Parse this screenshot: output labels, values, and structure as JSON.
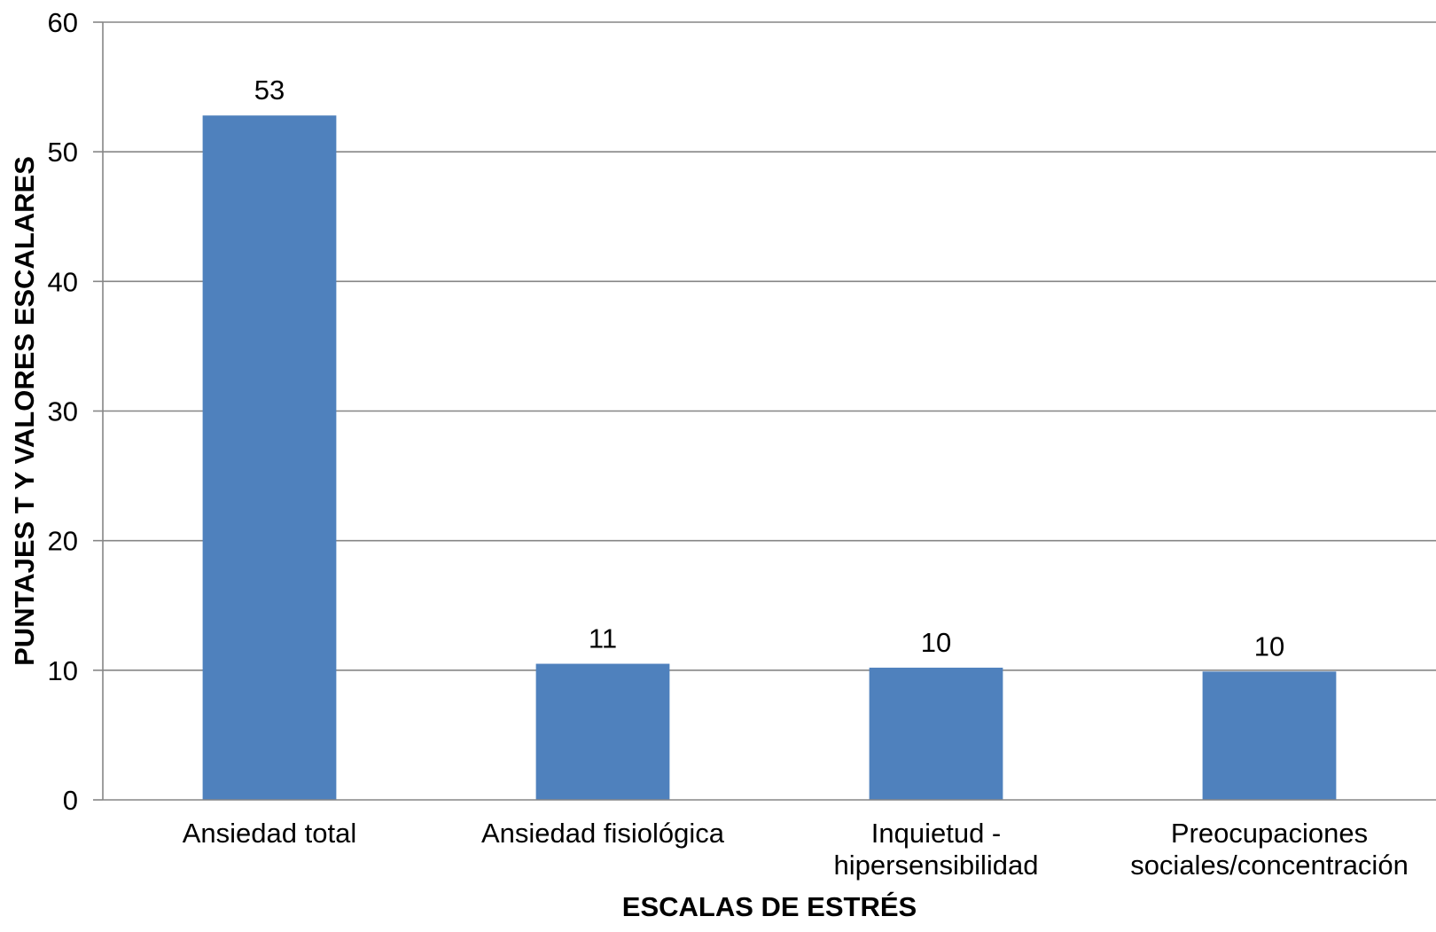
{
  "chart_data": {
    "type": "bar",
    "xlabel": "ESCALAS DE ESTRÉS",
    "ylabel": "PUNTAJES T Y VALORES ESCALARES",
    "categories": [
      "Ansiedad total",
      "Ansiedad fisiológica",
      "Inquietud - hipersensibilidad",
      "Preocupaciones sociales/concentración"
    ],
    "values": [
      52.8,
      10.5,
      10.2,
      9.9
    ],
    "data_labels": [
      "53",
      "11",
      "10",
      "10"
    ],
    "ylim": [
      0,
      60
    ],
    "yticks": [
      0,
      10,
      20,
      30,
      40,
      50,
      60
    ],
    "grid": true,
    "bar_color": "#4F81BD",
    "grid_color": "#868686",
    "axis_color": "#868686"
  }
}
